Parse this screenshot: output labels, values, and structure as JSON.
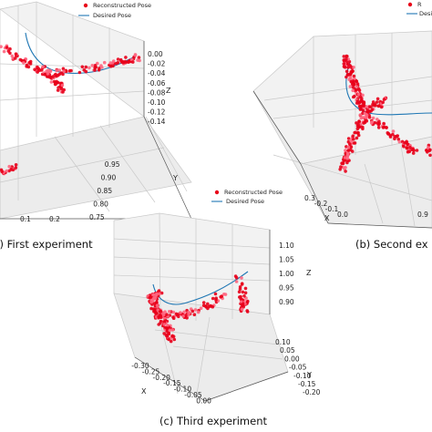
{
  "chart_data": [
    {
      "type": "scatter",
      "subtype": "3d",
      "caption": "(a) First experiment",
      "legend": [
        "Reconstructed Pose",
        "Desired Pose"
      ],
      "axes": {
        "x": {
          "label": "",
          "ticks": [
            "0.1",
            "0.2"
          ]
        },
        "y": {
          "label": "Y",
          "ticks": [
            "0.75",
            "0.80",
            "0.85",
            "0.90",
            "0.95"
          ]
        },
        "z": {
          "label": "Z",
          "ticks": [
            "0.00",
            "-0.02",
            "-0.04",
            "-0.06",
            "-0.08",
            "-0.10",
            "-0.12",
            "-0.14"
          ]
        }
      },
      "grid": true,
      "series": [
        {
          "name": "Reconstructed Pose",
          "color": "#e8001a",
          "marker": "point"
        },
        {
          "name": "Desired Pose",
          "color": "#1f77b4",
          "marker": "line"
        }
      ]
    },
    {
      "type": "scatter",
      "subtype": "3d",
      "caption": "(b) Second ex",
      "legend": [
        "R",
        "Desired Pose"
      ],
      "axes": {
        "x": {
          "label": "X",
          "ticks": [
            "0.3",
            "-0.2",
            "-0.1",
            "0.0"
          ]
        },
        "y": {
          "label": "",
          "ticks": [
            "0.9"
          ]
        },
        "z": {
          "label": "",
          "ticks": []
        }
      },
      "grid": true,
      "series": [
        {
          "name": "Reconstructed Pose",
          "color": "#e8001a",
          "marker": "point"
        },
        {
          "name": "Desired Pose",
          "color": "#1f77b4",
          "marker": "line"
        }
      ]
    },
    {
      "type": "scatter",
      "subtype": "3d",
      "caption": "(c) Third experiment",
      "legend": [
        "Reconstructed Pose",
        "Desired Pose"
      ],
      "axes": {
        "x": {
          "label": "X",
          "ticks": [
            "-0.30",
            "-0.25",
            "-0.20",
            "-0.15",
            "-0.10",
            "-0.05",
            "0.00"
          ]
        },
        "y": {
          "label": "Y",
          "ticks": [
            "0.10",
            "0.05",
            "0.00",
            "-0.05",
            "-0.10",
            "-0.15",
            "-0.20"
          ]
        },
        "z": {
          "label": "Z",
          "ticks": [
            "1.10",
            "1.05",
            "1.00",
            "0.95",
            "0.90"
          ]
        }
      },
      "grid": true,
      "series": [
        {
          "name": "Reconstructed Pose",
          "color": "#e8001a",
          "marker": "point"
        },
        {
          "name": "Desired Pose",
          "color": "#1f77b4",
          "marker": "line"
        }
      ]
    }
  ]
}
